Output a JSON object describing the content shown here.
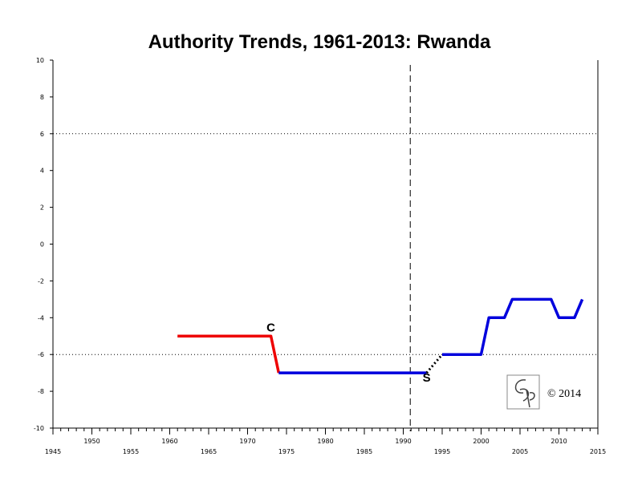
{
  "chart_data": {
    "type": "line",
    "title": "Authority Trends, 1961-2013: Rwanda",
    "xlim": [
      1945,
      2015
    ],
    "ylim": [
      -10,
      10
    ],
    "x_ticks": [
      1945,
      1950,
      1955,
      1960,
      1965,
      1970,
      1975,
      1980,
      1985,
      1990,
      1995,
      2000,
      2005,
      2010,
      2015
    ],
    "y_ticks": [
      10,
      8,
      6,
      4,
      2,
      0,
      -2,
      -4,
      -6,
      -8,
      -10
    ],
    "reference_lines": [
      6,
      -6
    ],
    "event_line_x": 1990.9,
    "series": [
      {
        "color": "#ee0000",
        "style": "solid",
        "points": [
          [
            1961,
            -5
          ],
          [
            1973,
            -5
          ],
          [
            1974,
            -7
          ]
        ]
      },
      {
        "color": "#0000dd",
        "style": "solid",
        "points": [
          [
            1974,
            -7
          ],
          [
            1993,
            -7
          ]
        ]
      },
      {
        "color": "#000000",
        "style": "dotted",
        "points": [
          [
            1993,
            -7
          ],
          [
            1995,
            -6
          ]
        ]
      },
      {
        "color": "#0000dd",
        "style": "solid",
        "points": [
          [
            1995,
            -6
          ],
          [
            2000,
            -6
          ],
          [
            2001,
            -4
          ],
          [
            2003,
            -4
          ],
          [
            2004,
            -3
          ],
          [
            2009,
            -3
          ],
          [
            2010,
            -4
          ],
          [
            2012,
            -4
          ],
          [
            2013,
            -3
          ]
        ]
      }
    ],
    "markers": [
      {
        "label": "C",
        "x": 1973,
        "y": -5
      },
      {
        "label": "S",
        "x": 1993,
        "y": -7
      }
    ]
  },
  "logo": {
    "text": "CSP"
  },
  "copyright": "© 2014"
}
